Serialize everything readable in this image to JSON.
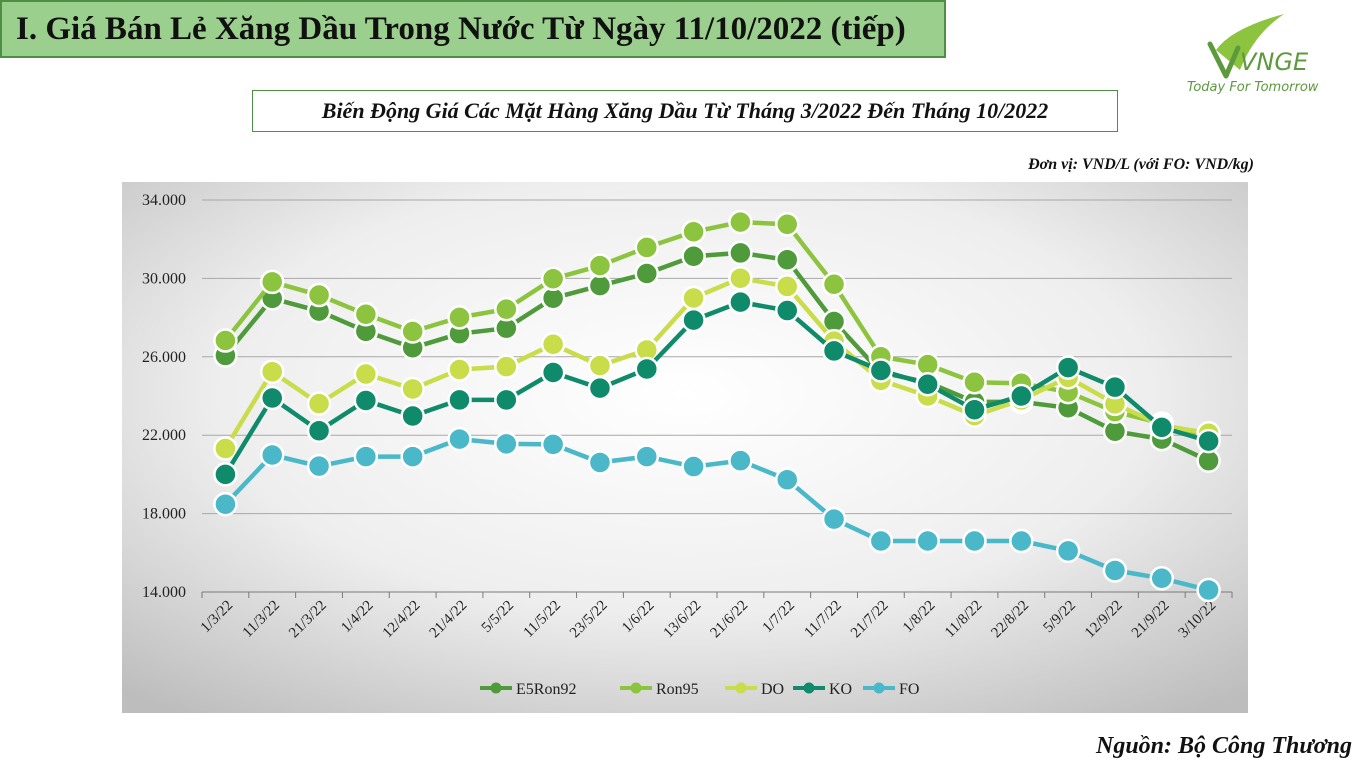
{
  "header": {
    "title": "I. Giá Bán Lẻ Xăng Dầu Trong Nước Từ Ngày 11/10/2022 (tiếp)"
  },
  "logo": {
    "text": "VNGE",
    "tagline": "Today For Tomorrow",
    "icon": "vnge-leaf-logo-icon"
  },
  "subtitle": "Biến Động Giá Các Mặt Hàng Xăng Dầu Từ Tháng 3/2022 Đến Tháng 10/2022",
  "unit_note": "Đơn vị: VND/L (với FO: VND/kg)",
  "source": "Nguồn: Bộ Công Thương",
  "chart_data": {
    "type": "line",
    "categories": [
      "1/3/22",
      "11/3/22",
      "21/3/22",
      "1/4/22",
      "12/4/22",
      "21/4/22",
      "5/5/22",
      "11/5/22",
      "23/5/22",
      "1/6/22",
      "13/6/22",
      "21/6/22",
      "1/7/22",
      "11/7/22",
      "21/7/22",
      "1/8/22",
      "11/8/22",
      "22/8/22",
      "5/9/22",
      "12/9/22",
      "21/9/22",
      "3/10/22"
    ],
    "ylim": [
      14000,
      34000
    ],
    "yticks": [
      {
        "value": 14000,
        "label": "14.000"
      },
      {
        "value": 18000,
        "label": "18.000"
      },
      {
        "value": 22000,
        "label": "22.000"
      },
      {
        "value": 26000,
        "label": "26.000"
      },
      {
        "value": 30000,
        "label": "30.000"
      },
      {
        "value": 34000,
        "label": "34.000"
      }
    ],
    "grid": true,
    "legend_position": "bottom",
    "series": [
      {
        "name": "E5Ron92",
        "color": "#4f9a3a",
        "values": [
          26070,
          28980,
          28330,
          27300,
          26460,
          27180,
          27460,
          28990,
          29630,
          30250,
          31130,
          31300,
          30950,
          27800,
          25200,
          24700,
          23700,
          23700,
          23400,
          22200,
          21800,
          20700
        ]
      },
      {
        "name": "Ron95",
        "color": "#8dc43f",
        "values": [
          26830,
          29820,
          29150,
          28170,
          27290,
          28010,
          28430,
          29980,
          30650,
          31580,
          32380,
          32870,
          32760,
          29700,
          26000,
          25600,
          24700,
          24650,
          24200,
          23200,
          22600,
          21800
        ]
      },
      {
        "name": "DO",
        "color": "#c9dc4a",
        "values": [
          21320,
          25240,
          23610,
          25120,
          24360,
          25350,
          25500,
          26640,
          25550,
          26350,
          29000,
          30010,
          29590,
          26800,
          24800,
          24000,
          23000,
          23800,
          24950,
          23600,
          22500,
          22100
        ]
      },
      {
        "name": "KO",
        "color": "#0f8a6a",
        "values": [
          20000,
          23900,
          22230,
          23770,
          22980,
          23800,
          23800,
          25200,
          24400,
          25380,
          27870,
          28790,
          28360,
          26300,
          25300,
          24600,
          23300,
          24000,
          25450,
          24450,
          22400,
          21700
        ]
      },
      {
        "name": "FO",
        "color": "#4ab8c8",
        "values": [
          18480,
          20990,
          20420,
          20910,
          20910,
          21800,
          21560,
          21530,
          20610,
          20910,
          20400,
          20700,
          19730,
          17720,
          16600,
          16600,
          16600,
          16600,
          16100,
          15100,
          14700,
          14100
        ]
      }
    ]
  }
}
